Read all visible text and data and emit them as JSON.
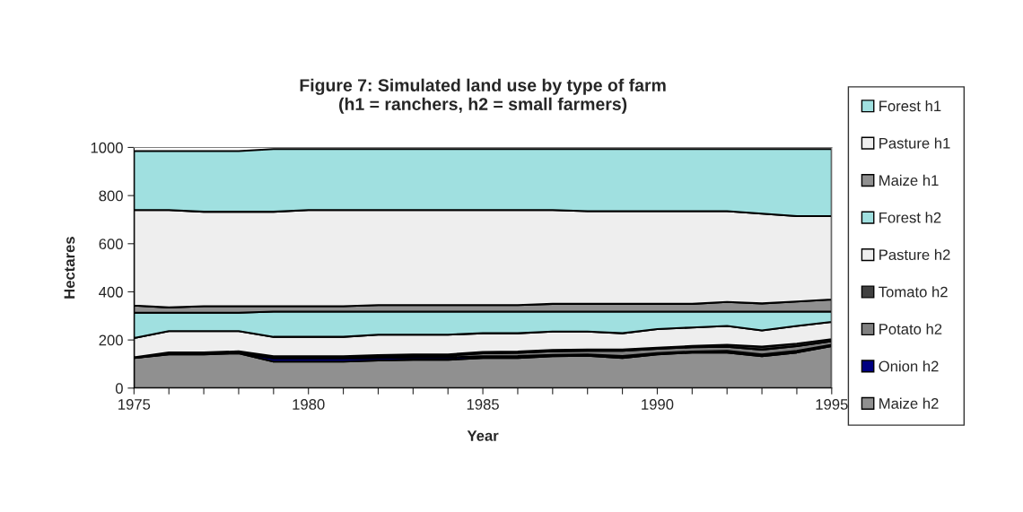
{
  "chart_data": {
    "type": "area",
    "stacked": true,
    "title": "Figure 7: Simulated land use by type of farm\n(h1 = ranchers, h2 = small farmers)",
    "xlabel": "Year",
    "ylabel": "Hectares",
    "x": [
      1975,
      1976,
      1977,
      1978,
      1979,
      1980,
      1981,
      1982,
      1983,
      1984,
      1985,
      1986,
      1987,
      1988,
      1989,
      1990,
      1991,
      1992,
      1993,
      1994,
      1995
    ],
    "series": [
      {
        "name": "Maize h2",
        "color": "#909090",
        "values": [
          125,
          140,
          140,
          145,
          110,
          110,
          110,
          115,
          118,
          118,
          125,
          125,
          133,
          135,
          125,
          140,
          148,
          148,
          133,
          148,
          175
        ]
      },
      {
        "name": "Onion h2",
        "color": "#000080",
        "values": [
          0,
          3,
          3,
          3,
          13,
          13,
          13,
          10,
          10,
          10,
          7,
          8,
          5,
          5,
          8,
          5,
          4,
          7,
          7,
          7,
          5
        ]
      },
      {
        "name": "Potato h2",
        "color": "#808080",
        "values": [
          2,
          2,
          2,
          2,
          5,
          5,
          5,
          8,
          7,
          7,
          13,
          14,
          15,
          15,
          22,
          18,
          18,
          17,
          20,
          20,
          15
        ]
      },
      {
        "name": "Tomato h2",
        "color": "#404040",
        "values": [
          1,
          3,
          3,
          3,
          4,
          4,
          4,
          4,
          5,
          5,
          5,
          5,
          5,
          5,
          5,
          5,
          5,
          8,
          12,
          10,
          8
        ]
      },
      {
        "name": "Pasture h2",
        "color": "#eeeeee",
        "values": [
          80,
          89,
          89,
          84,
          81,
          81,
          81,
          85,
          82,
          82,
          78,
          76,
          77,
          75,
          68,
          77,
          77,
          78,
          68,
          73,
          72
        ]
      },
      {
        "name": "Forest h2",
        "color": "#a0e0e0",
        "values": [
          105,
          76,
          76,
          76,
          105,
          105,
          105,
          96,
          96,
          96,
          90,
          90,
          83,
          83,
          90,
          73,
          66,
          60,
          78,
          60,
          43
        ]
      },
      {
        "name": "Maize h1",
        "color": "#909090",
        "values": [
          30,
          22,
          27,
          27,
          22,
          22,
          22,
          27,
          27,
          27,
          27,
          27,
          32,
          32,
          32,
          32,
          32,
          40,
          34,
          42,
          50
        ]
      },
      {
        "name": "Pasture h1",
        "color": "#eeeeee",
        "values": [
          397,
          405,
          393,
          393,
          393,
          400,
          400,
          395,
          395,
          395,
          395,
          395,
          390,
          385,
          385,
          385,
          385,
          377,
          373,
          355,
          347
        ]
      },
      {
        "name": "Forest h1",
        "color": "#a0e0e0",
        "values": [
          245,
          245,
          252,
          252,
          260,
          253,
          253,
          253,
          253,
          253,
          253,
          253,
          253,
          258,
          258,
          258,
          258,
          258,
          268,
          278,
          278
        ]
      }
    ],
    "xlim": [
      1975,
      1995
    ],
    "xticks": [
      1975,
      {
        "value": 1976,
        "label": null
      },
      {
        "value": 1977,
        "label": null
      },
      {
        "value": 1978,
        "label": null
      },
      {
        "value": 1979,
        "label": null
      },
      1980,
      {
        "value": 1981,
        "label": null
      },
      {
        "value": 1982,
        "label": null
      },
      {
        "value": 1983,
        "label": null
      },
      {
        "value": 1984,
        "label": null
      },
      1985,
      {
        "value": 1986,
        "label": null
      },
      {
        "value": 1987,
        "label": null
      },
      {
        "value": 1988,
        "label": null
      },
      {
        "value": 1989,
        "label": null
      },
      1990,
      {
        "value": 1991,
        "label": null
      },
      {
        "value": 1992,
        "label": null
      },
      {
        "value": 1993,
        "label": null
      },
      {
        "value": 1994,
        "label": null
      },
      1995
    ],
    "ylim": [
      0,
      1000
    ],
    "yticks": [
      0,
      200,
      400,
      600,
      800,
      1000
    ],
    "legend": "right",
    "grid": false
  }
}
